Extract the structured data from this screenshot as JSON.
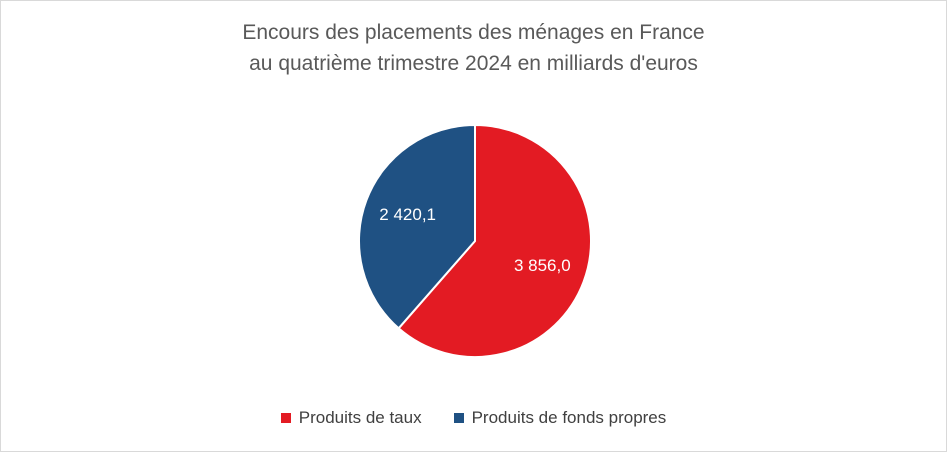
{
  "chart_data": {
    "type": "pie",
    "title_lines": [
      "Encours des placements des ménages en France",
      "au quatrième trimestre 2024 en milliards d'euros"
    ],
    "slices": [
      {
        "name": "Produits de taux",
        "value": 3856.0,
        "label": "3 856,0",
        "color": "#e31b23"
      },
      {
        "name": "Produits de fonds propres",
        "value": 2420.1,
        "label": "2 420,1",
        "color": "#1f5183"
      }
    ],
    "legend_position": "bottom"
  }
}
